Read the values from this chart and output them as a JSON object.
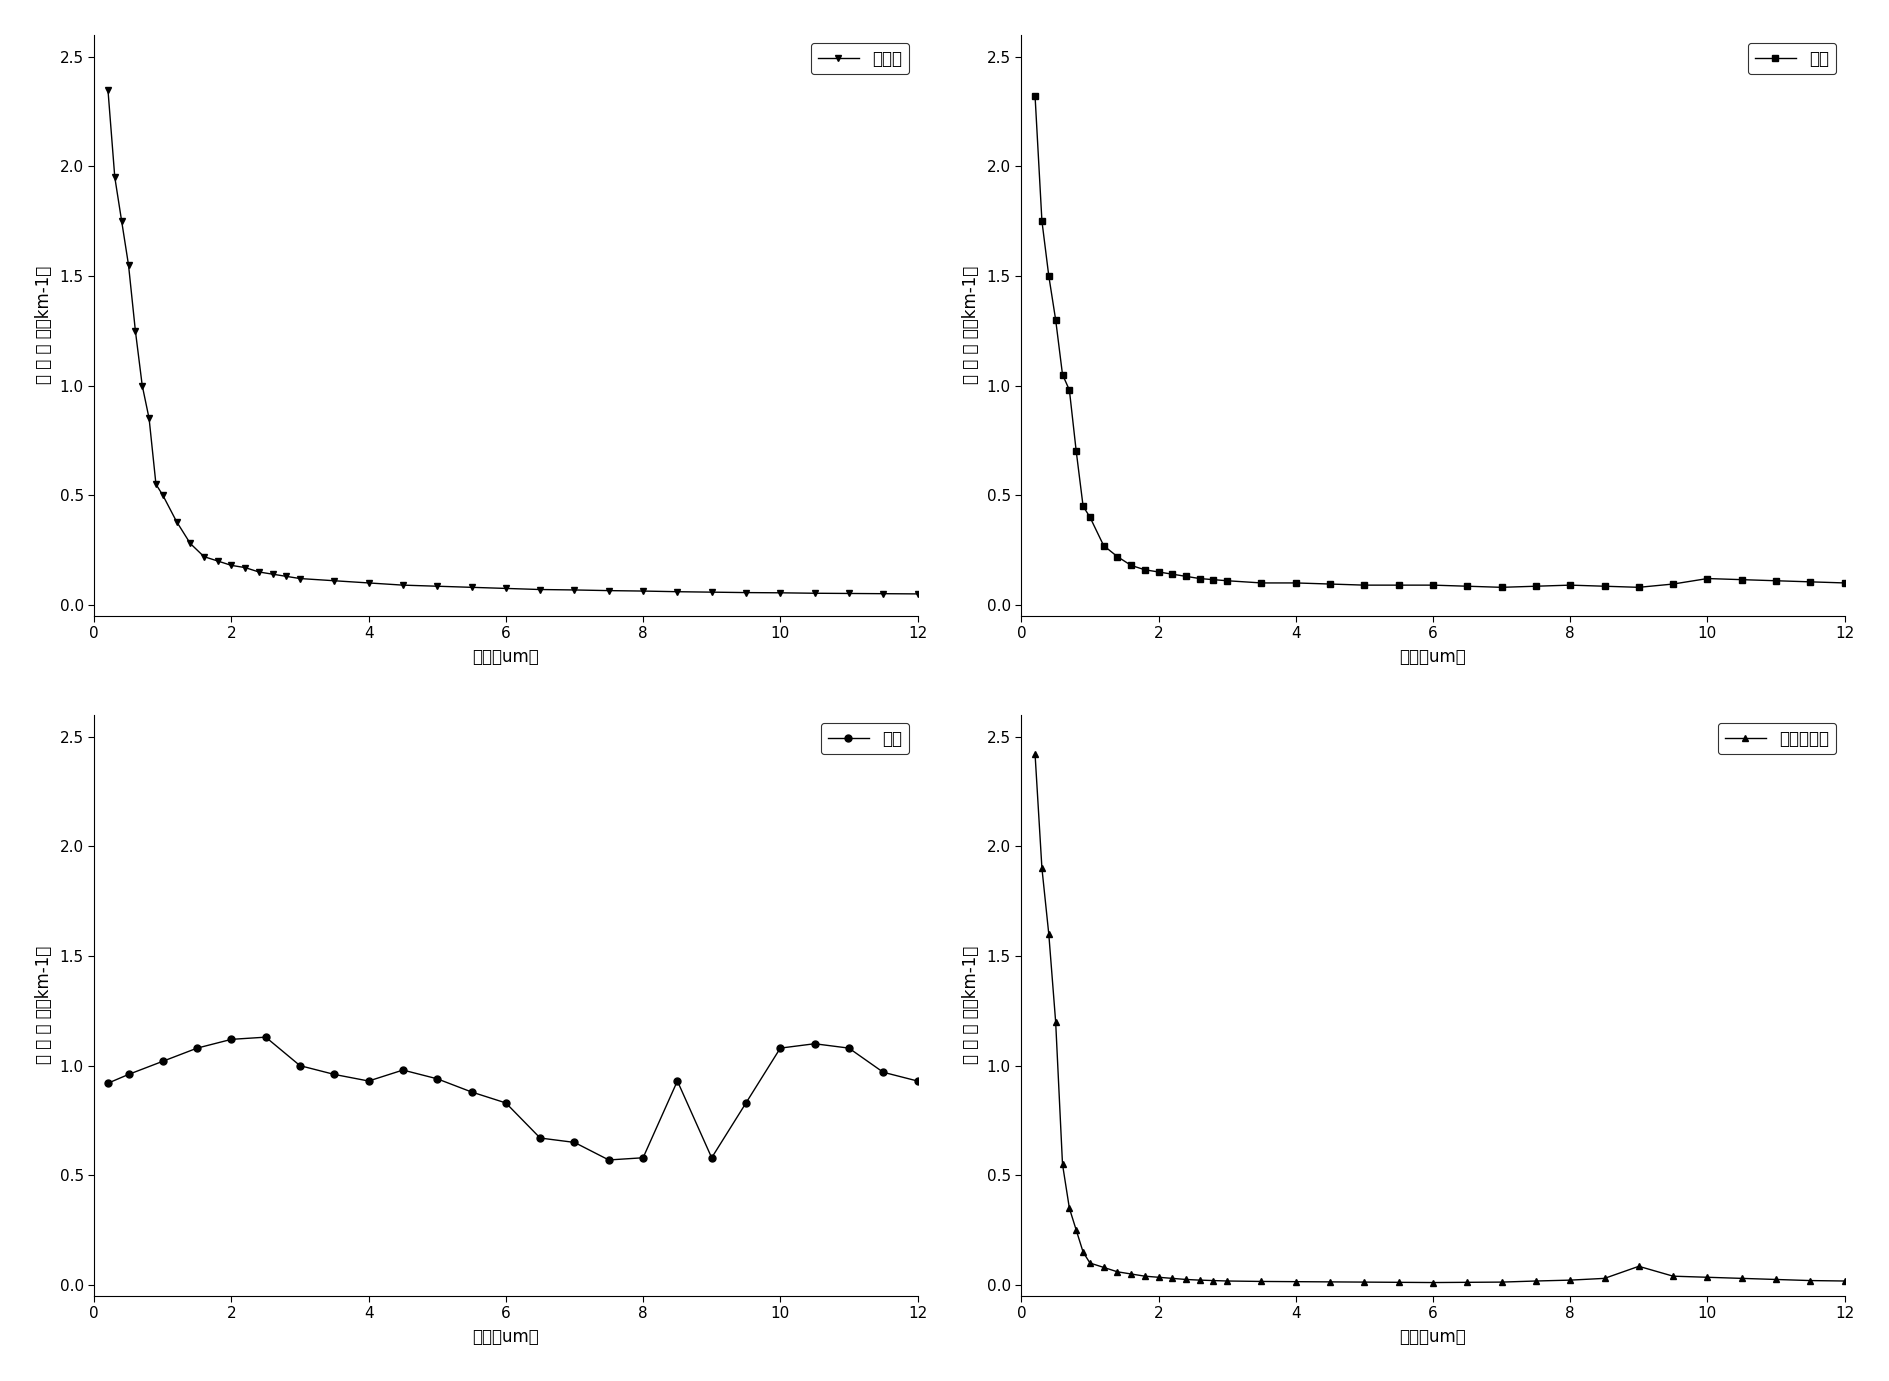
{
  "legend_labels": [
    "煮烟型",
    "全部",
    "粗尘",
    "水溶性粒子"
  ],
  "xlabel": "波长（um）",
  "ylabel": "消光系数（km-1）",
  "ylabel_spaced": "消 光 系 数（km-1）",
  "background_color": "#ffffff",
  "line_color": "#000000",
  "x_smoke": [
    0.2,
    0.3,
    0.4,
    0.5,
    0.6,
    0.7,
    0.8,
    0.9,
    1.0,
    1.2,
    1.4,
    1.6,
    1.8,
    2.0,
    2.2,
    2.4,
    2.6,
    2.8,
    3.0,
    3.5,
    4.0,
    4.5,
    5.0,
    5.5,
    6.0,
    6.5,
    7.0,
    7.5,
    8.0,
    8.5,
    9.0,
    9.5,
    10.0,
    10.5,
    11.0,
    11.5,
    12.0
  ],
  "y_smoke": [
    2.35,
    1.95,
    1.75,
    1.55,
    1.25,
    1.0,
    0.85,
    0.55,
    0.5,
    0.38,
    0.28,
    0.22,
    0.2,
    0.18,
    0.17,
    0.15,
    0.14,
    0.13,
    0.12,
    0.11,
    0.1,
    0.09,
    0.085,
    0.08,
    0.075,
    0.07,
    0.068,
    0.065,
    0.063,
    0.06,
    0.058,
    0.056,
    0.055,
    0.053,
    0.052,
    0.051,
    0.05
  ],
  "x_all": [
    0.2,
    0.3,
    0.4,
    0.5,
    0.6,
    0.7,
    0.8,
    0.9,
    1.0,
    1.2,
    1.4,
    1.6,
    1.8,
    2.0,
    2.2,
    2.4,
    2.6,
    2.8,
    3.0,
    3.5,
    4.0,
    4.5,
    5.0,
    5.5,
    6.0,
    6.5,
    7.0,
    7.5,
    8.0,
    8.5,
    9.0,
    9.5,
    10.0,
    10.5,
    11.0,
    11.5,
    12.0
  ],
  "y_all": [
    2.32,
    1.75,
    1.5,
    1.3,
    1.05,
    0.98,
    0.7,
    0.45,
    0.4,
    0.27,
    0.22,
    0.18,
    0.16,
    0.15,
    0.14,
    0.13,
    0.12,
    0.115,
    0.11,
    0.1,
    0.1,
    0.095,
    0.09,
    0.09,
    0.09,
    0.085,
    0.08,
    0.085,
    0.09,
    0.085,
    0.08,
    0.095,
    0.12,
    0.115,
    0.11,
    0.105,
    0.1
  ],
  "x_dust": [
    0.2,
    0.5,
    1.0,
    1.5,
    2.0,
    2.5,
    3.0,
    3.5,
    4.0,
    4.5,
    5.0,
    5.5,
    6.0,
    6.5,
    7.0,
    7.5,
    8.0,
    8.5,
    9.0,
    9.5,
    10.0,
    10.5,
    11.0,
    11.5,
    12.0
  ],
  "y_dust": [
    0.92,
    0.96,
    1.02,
    1.08,
    1.12,
    1.13,
    1.0,
    0.96,
    0.93,
    0.98,
    0.94,
    0.88,
    0.83,
    0.67,
    0.65,
    0.57,
    0.58,
    0.93,
    0.58,
    0.83,
    1.08,
    1.1,
    1.08,
    0.97,
    0.93
  ],
  "x_water": [
    0.2,
    0.3,
    0.4,
    0.5,
    0.6,
    0.7,
    0.8,
    0.9,
    1.0,
    1.2,
    1.4,
    1.6,
    1.8,
    2.0,
    2.2,
    2.4,
    2.6,
    2.8,
    3.0,
    3.5,
    4.0,
    4.5,
    5.0,
    5.5,
    6.0,
    6.5,
    7.0,
    7.5,
    8.0,
    8.5,
    9.0,
    9.5,
    10.0,
    10.5,
    11.0,
    11.5,
    12.0
  ],
  "y_water": [
    2.42,
    1.9,
    1.6,
    1.2,
    0.55,
    0.35,
    0.25,
    0.15,
    0.1,
    0.08,
    0.06,
    0.05,
    0.04,
    0.035,
    0.03,
    0.025,
    0.022,
    0.02,
    0.018,
    0.016,
    0.015,
    0.014,
    0.013,
    0.012,
    0.011,
    0.012,
    0.013,
    0.018,
    0.022,
    0.03,
    0.085,
    0.04,
    0.035,
    0.03,
    0.025,
    0.02,
    0.018
  ]
}
